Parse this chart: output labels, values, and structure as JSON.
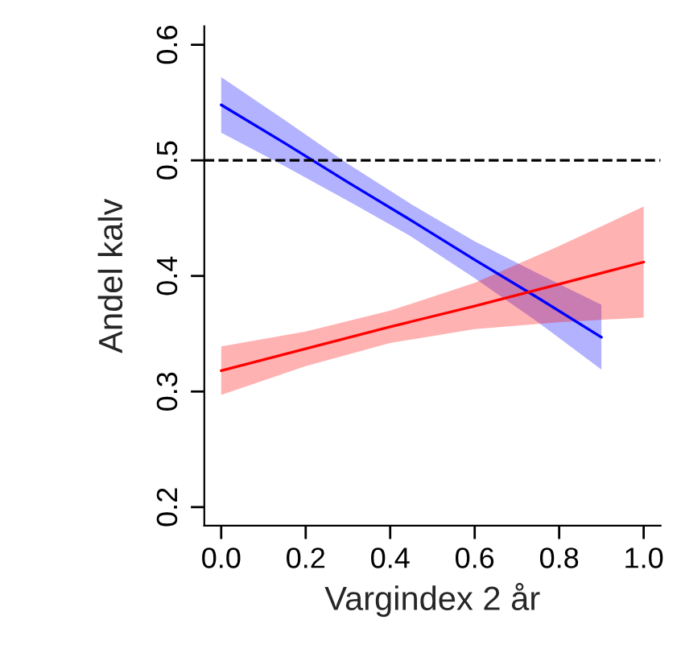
{
  "chart_data": {
    "type": "line",
    "xlabel": "Vargindex 2 år",
    "ylabel": "Andel kalv",
    "xlim": [
      -0.04,
      1.04
    ],
    "ylim": [
      0.184,
      0.616
    ],
    "xticks": [
      {
        "value": 0.0,
        "label": "0.0"
      },
      {
        "value": 0.2,
        "label": "0.2"
      },
      {
        "value": 0.4,
        "label": "0.4"
      },
      {
        "value": 0.6,
        "label": "0.6"
      },
      {
        "value": 0.8,
        "label": "0.8"
      },
      {
        "value": 1.0,
        "label": "1.0"
      }
    ],
    "yticks": [
      {
        "value": 0.2,
        "label": "0.2"
      },
      {
        "value": 0.3,
        "label": "0.3"
      },
      {
        "value": 0.4,
        "label": "0.4"
      },
      {
        "value": 0.5,
        "label": "0.5"
      },
      {
        "value": 0.6,
        "label": "0.6"
      }
    ],
    "grid": false,
    "legend": false,
    "series": [
      {
        "color": "#0000ff",
        "x": [
          0,
          0.15,
          0.3,
          0.45,
          0.6,
          0.75,
          0.9
        ],
        "values": [
          0.548,
          0.515,
          0.481,
          0.448,
          0.414,
          0.381,
          0.347
        ],
        "lower": [
          0.524,
          0.495,
          0.465,
          0.434,
          0.398,
          0.36,
          0.319
        ],
        "upper": [
          0.572,
          0.535,
          0.497,
          0.462,
          0.43,
          0.402,
          0.375
        ]
      },
      {
        "color": "#ff0000",
        "x": [
          0,
          0.2,
          0.4,
          0.6,
          0.8,
          1.0
        ],
        "values": [
          0.318,
          0.337,
          0.356,
          0.374,
          0.393,
          0.412
        ],
        "lower": [
          0.297,
          0.322,
          0.342,
          0.354,
          0.36,
          0.364
        ],
        "upper": [
          0.339,
          0.352,
          0.37,
          0.394,
          0.426,
          0.46
        ]
      }
    ],
    "ref_lines": [
      {
        "axis": "y",
        "value": 0.5,
        "color": "#000000",
        "line_style": "dashed"
      }
    ]
  }
}
